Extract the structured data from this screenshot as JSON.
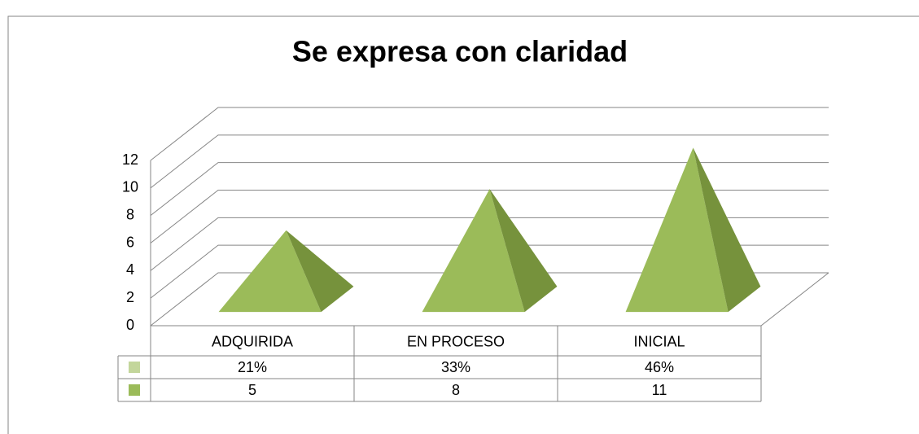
{
  "chart_data": {
    "type": "pyramid",
    "title": "Se expresa con claridad",
    "categories": [
      "ADQUIRIDA",
      "EN PROCESO",
      "INICIAL"
    ],
    "series": [
      {
        "color": "#c3d69b",
        "values": [
          21,
          33,
          46
        ],
        "value_labels": [
          "21%",
          "33%",
          "46%"
        ]
      },
      {
        "color": "#9bbb59",
        "values": [
          5,
          8,
          11
        ]
      }
    ],
    "ylim": [
      0,
      12
    ],
    "yticks": [
      0,
      2,
      4,
      6,
      8,
      10,
      12
    ],
    "grid": true
  }
}
